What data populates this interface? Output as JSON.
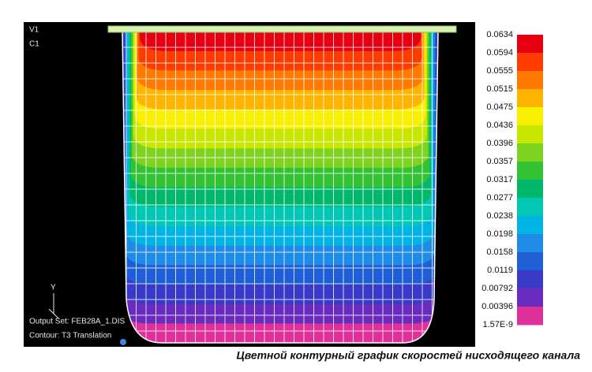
{
  "viewport": {
    "labels": [
      "V1",
      "C1"
    ],
    "axis_label": "Y",
    "output_set": "Output Set: FEB28A_1.DIS",
    "contour": "Contour: T3 Translation"
  },
  "legend": {
    "levels": [
      "0.0634",
      "0.0594",
      "0.0555",
      "0.0515",
      "0.0475",
      "0.0436",
      "0.0396",
      "0.0357",
      "0.0317",
      "0.0277",
      "0.0238",
      "0.0198",
      "0.0158",
      "0.0119",
      "0.00792",
      "0.00396",
      "1.57E-9"
    ],
    "colors": [
      "#e60012",
      "#ff3c00",
      "#ff7a00",
      "#ffb400",
      "#f8f000",
      "#c8e600",
      "#7ed321",
      "#33c233",
      "#00b86b",
      "#00c8b4",
      "#00b4e6",
      "#1e8ce6",
      "#1f5fd6",
      "#3a3ac8",
      "#6a2cbe",
      "#e0309a"
    ]
  },
  "caption": "Цветной контурный график скоростей нисходящего канала"
}
